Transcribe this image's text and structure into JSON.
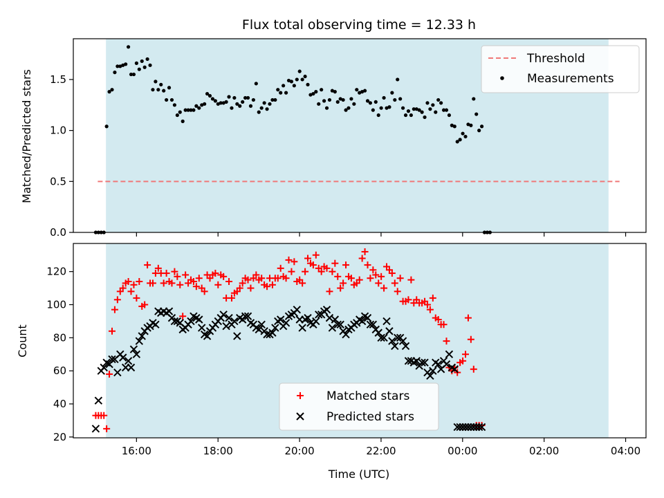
{
  "chart_data": {
    "title": "Flux total observing time = 12.33 h",
    "xlabel": "Time (UTC)",
    "colors": {
      "band": "#d3eaf0",
      "threshold": "#f07878",
      "measurements": "#000000",
      "matched": "#ff0000",
      "predicted": "#000000"
    },
    "x_ticks": [
      {
        "hours": 16,
        "label": "16:00"
      },
      {
        "hours": 18,
        "label": "18:00"
      },
      {
        "hours": 20,
        "label": "20:00"
      },
      {
        "hours": 22,
        "label": "22:00"
      },
      {
        "hours": 24,
        "label": "00:00"
      },
      {
        "hours": 26,
        "label": "02:00"
      },
      {
        "hours": 28,
        "label": "04:00"
      }
    ],
    "x_range_hours": [
      14.45,
      28.5
    ],
    "observing_band_hours": [
      15.25,
      27.58
    ],
    "panels": [
      {
        "type": "scatter",
        "ylabel": "Matched/Predicted stars",
        "ylim": [
          0,
          1.9
        ],
        "y_ticks": [
          "0.0",
          "0.5",
          "1.0",
          "1.5"
        ],
        "y_tick_values": [
          0,
          0.5,
          1.0,
          1.5
        ],
        "legend": {
          "placement": "top-right",
          "threshold_label": "Threshold",
          "measurements_label": "Measurements"
        },
        "threshold": {
          "y": 0.5,
          "x_range": [
            15.05,
            27.85
          ]
        },
        "measurements": {
          "start": 15.0,
          "step": 0.0667,
          "y": [
            0,
            0,
            0,
            0,
            1.04,
            1.38,
            1.4,
            1.57,
            1.63,
            1.63,
            1.64,
            1.65,
            1.82,
            1.55,
            1.55,
            1.66,
            1.6,
            1.68,
            1.62,
            1.7,
            1.64,
            1.4,
            1.48,
            1.4,
            1.45,
            1.39,
            1.3,
            1.42,
            1.3,
            1.25,
            1.15,
            1.18,
            1.09,
            1.2,
            1.2,
            1.2,
            1.2,
            1.24,
            1.22,
            1.25,
            1.26,
            1.36,
            1.34,
            1.31,
            1.29,
            1.26,
            1.27,
            1.27,
            1.28,
            1.33,
            1.22,
            1.32,
            1.26,
            1.24,
            1.28,
            1.32,
            1.32,
            1.24,
            1.3,
            1.46,
            1.18,
            1.22,
            1.27,
            1.21,
            1.26,
            1.3,
            1.3,
            1.4,
            1.37,
            1.44,
            1.37,
            1.49,
            1.48,
            1.44,
            1.5,
            1.58,
            1.5,
            1.53,
            1.45,
            1.35,
            1.36,
            1.38,
            1.26,
            1.4,
            1.29,
            1.22,
            1.3,
            1.39,
            1.38,
            1.28,
            1.31,
            1.3,
            1.2,
            1.22,
            1.31,
            1.26,
            1.4,
            1.37,
            1.38,
            1.39,
            1.29,
            1.27,
            1.2,
            1.28,
            1.15,
            1.22,
            1.32,
            1.22,
            1.23,
            1.37,
            1.3,
            1.5,
            1.31,
            1.22,
            1.15,
            1.19,
            1.15,
            1.21,
            1.21,
            1.2,
            1.18,
            1.13,
            1.27,
            1.21,
            1.25,
            1.18,
            1.3,
            1.27,
            1.2,
            1.2,
            1.15,
            1.05,
            1.04,
            0.89,
            0.91,
            0.97,
            0.94,
            1.06,
            1.05,
            1.31,
            1.16,
            1.0,
            1.04,
            0,
            0,
            0
          ]
        }
      },
      {
        "type": "scatter",
        "ylabel": "Count",
        "ylim": [
          19.5,
          137
        ],
        "y_ticks": [
          "20",
          "40",
          "60",
          "80",
          "100",
          "120"
        ],
        "y_tick_values": [
          20,
          40,
          60,
          80,
          100,
          120
        ],
        "legend": {
          "placement": "lower-center",
          "matched_label": "Matched stars",
          "predicted_label": "Predicted stars"
        },
        "matched": {
          "start": 15.0,
          "step": 0.0667,
          "y": [
            33,
            33,
            33,
            33,
            25,
            58,
            84,
            97,
            103,
            108,
            110,
            113,
            114,
            108,
            112,
            104,
            114,
            99,
            100,
            124,
            113,
            113,
            119,
            122,
            119,
            113,
            119,
            114,
            113,
            120,
            117,
            112,
            93,
            118,
            113,
            115,
            114,
            111,
            116,
            110,
            108,
            118,
            116,
            118,
            119,
            112,
            118,
            117,
            104,
            114,
            104,
            107,
            108,
            110,
            113,
            116,
            115,
            110,
            116,
            118,
            115,
            116,
            112,
            111,
            116,
            112,
            116,
            116,
            122,
            117,
            116,
            127,
            120,
            126,
            114,
            115,
            113,
            120,
            128,
            125,
            124,
            130,
            122,
            120,
            123,
            122,
            108,
            120,
            125,
            117,
            110,
            113,
            124,
            117,
            116,
            112,
            113,
            115,
            128,
            132,
            124,
            116,
            121,
            118,
            113,
            117,
            110,
            123,
            121,
            119,
            113,
            108,
            116,
            102,
            102,
            103,
            115,
            101,
            103,
            101,
            101,
            102,
            100,
            97,
            104,
            92,
            91,
            88,
            88,
            78,
            62,
            60,
            62,
            59,
            65,
            66,
            70,
            92,
            79,
            61,
            27,
            27,
            27
          ]
        },
        "predicted": {
          "start": 15.0,
          "step": 0.0667,
          "y": [
            25,
            42,
            60,
            62,
            65,
            64,
            67,
            67,
            59,
            70,
            68,
            62,
            66,
            62,
            73,
            70,
            78,
            81,
            84,
            86,
            87,
            89,
            88,
            96,
            95,
            96,
            95,
            96,
            92,
            90,
            90,
            89,
            85,
            86,
            88,
            90,
            93,
            92,
            91,
            86,
            82,
            81,
            84,
            86,
            88,
            90,
            92,
            94,
            87,
            92,
            88,
            90,
            81,
            92,
            91,
            93,
            93,
            89,
            88,
            86,
            85,
            88,
            84,
            82,
            82,
            83,
            86,
            90,
            91,
            87,
            89,
            93,
            94,
            95,
            97,
            91,
            86,
            91,
            92,
            89,
            88,
            90,
            94,
            94,
            96,
            97,
            92,
            86,
            91,
            88,
            88,
            84,
            82,
            85,
            86,
            88,
            89,
            91,
            90,
            93,
            92,
            88,
            88,
            85,
            83,
            80,
            80,
            90,
            84,
            78,
            75,
            80,
            80,
            78,
            75,
            66,
            66,
            65,
            66,
            63,
            65,
            65,
            59,
            57,
            60,
            65,
            64,
            61,
            66,
            64,
            70,
            62,
            61,
            26,
            26,
            26,
            26,
            26,
            26,
            26,
            26,
            26,
            26
          ]
        }
      }
    ]
  }
}
